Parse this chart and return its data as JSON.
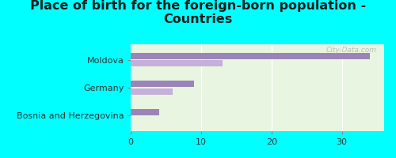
{
  "title": "Place of birth for the foreign-born population -\nCountries",
  "categories": [
    "Moldova",
    "Germany",
    "Bosnia and Herzegovina"
  ],
  "values_dark": [
    34,
    9,
    4
  ],
  "values_light": [
    13,
    6,
    0
  ],
  "bar_color_dark": "#9b85b8",
  "bar_color_light": "#c4b0d9",
  "bg_color": "#00ffff",
  "chart_bg": "#e8f5e0",
  "xlim": [
    0,
    36
  ],
  "xticks": [
    0,
    10,
    20,
    30
  ],
  "watermark": "City-Data.com",
  "title_fontsize": 11.5,
  "label_fontsize": 8,
  "tick_fontsize": 8
}
